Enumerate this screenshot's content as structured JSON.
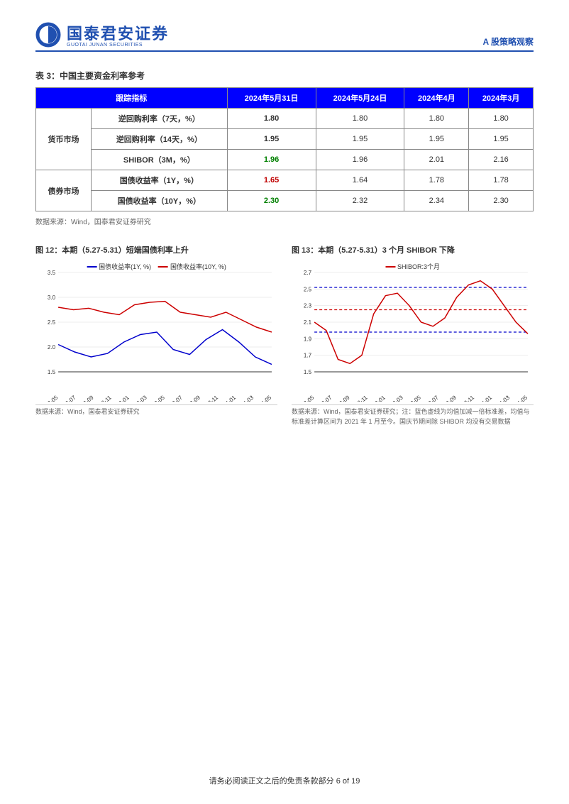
{
  "header": {
    "logo_cn": "国泰君安证券",
    "logo_en": "GUOTAI JUNAN SECURITIES",
    "doc_title": "A 股策略观察"
  },
  "table3": {
    "title": "表 3：中国主要资金利率参考",
    "headers": [
      "跟踪指标",
      "2024年5月31日",
      "2024年5月24日",
      "2024年4月",
      "2024年3月"
    ],
    "group1_label": "货币市场",
    "group2_label": "债券市场",
    "rows": [
      {
        "indicator": "逆回购利率（7天，%）",
        "c1": "1.80",
        "c1_style": "bold",
        "c2": "1.80",
        "c3": "1.80",
        "c4": "1.80"
      },
      {
        "indicator": "逆回购利率（14天，%）",
        "c1": "1.95",
        "c1_style": "bold",
        "c2": "1.95",
        "c3": "1.95",
        "c4": "1.95"
      },
      {
        "indicator": "SHIBOR（3M，%）",
        "c1": "1.96",
        "c1_style": "green",
        "c2": "1.96",
        "c3": "2.01",
        "c4": "2.16"
      },
      {
        "indicator": "国债收益率（1Y，%）",
        "c1": "1.65",
        "c1_style": "red",
        "c2": "1.64",
        "c3": "1.78",
        "c4": "1.78"
      },
      {
        "indicator": "国债收益率（10Y，%）",
        "c1": "2.30",
        "c1_style": "green",
        "c2": "2.32",
        "c3": "2.34",
        "c4": "2.30"
      }
    ],
    "source": "数据来源：Wind，国泰君安证券研究"
  },
  "chart12": {
    "title": "图 12：本期（5.27-5.31）短端国债利率上升",
    "type": "line",
    "legend": [
      {
        "label": "国债收益率(1Y, %)",
        "color": "#0000cc"
      },
      {
        "label": "国债收益率(10Y, %)",
        "color": "#cc0000"
      }
    ],
    "ylim": [
      1.5,
      3.5
    ],
    "ytick_step": 0.5,
    "x_labels": [
      "2022-05",
      "2022-07",
      "2022-09",
      "2022-11",
      "2023-01",
      "2023-03",
      "2023-05",
      "2023-07",
      "2023-09",
      "2023-11",
      "2024-01",
      "2024-03",
      "2024-05"
    ],
    "series_1y": [
      2.05,
      1.9,
      1.8,
      1.87,
      2.1,
      2.25,
      2.3,
      1.95,
      1.85,
      2.15,
      2.35,
      2.1,
      1.8,
      1.65
    ],
    "series_10y": [
      2.8,
      2.75,
      2.78,
      2.7,
      2.65,
      2.85,
      2.9,
      2.92,
      2.7,
      2.65,
      2.6,
      2.7,
      2.55,
      2.4,
      2.3
    ],
    "line_color_1y": "#0000cc",
    "line_color_10y": "#cc0000",
    "grid_color": "#dddddd",
    "axis_color": "#333333",
    "label_fontsize": 8,
    "source": "数据来源：Wind，国泰君安证券研究"
  },
  "chart13": {
    "title": "图 13：本期（5.27-5.31）3 个月 SHIBOR 下降",
    "type": "line",
    "legend": [
      {
        "label": "SHIBOR:3个月",
        "color": "#cc0000"
      }
    ],
    "ylim": [
      1.5,
      2.7
    ],
    "ytick_step": 0.2,
    "x_labels": [
      "2022-05",
      "2022-07",
      "2022-09",
      "2022-11",
      "2023-01",
      "2023-03",
      "2023-05",
      "2023-07",
      "2023-09",
      "2023-11",
      "2024-01",
      "2024-03",
      "2024-05"
    ],
    "series": [
      2.1,
      2.0,
      1.65,
      1.6,
      1.7,
      2.2,
      2.42,
      2.45,
      2.3,
      2.1,
      2.05,
      2.15,
      2.4,
      2.55,
      2.6,
      2.5,
      2.3,
      2.1,
      1.96
    ],
    "line_color": "#cc0000",
    "band_upper": 2.52,
    "band_mid": 2.25,
    "band_lower": 1.98,
    "band_color_outer": "#0000cc",
    "band_color_mid": "#cc0000",
    "grid_color": "#dddddd",
    "axis_color": "#333333",
    "label_fontsize": 8,
    "source": "数据来源：Wind，国泰君安证券研究；注：蓝色虚线为均值加减一倍标准差，均值与标准差计算区间为 2021 年 1 月至今。国庆节期间除 SHIBOR 均没有交易数据"
  },
  "footer": {
    "text": "请务必阅读正文之后的免责条款部分",
    "page": "6 of 19"
  }
}
